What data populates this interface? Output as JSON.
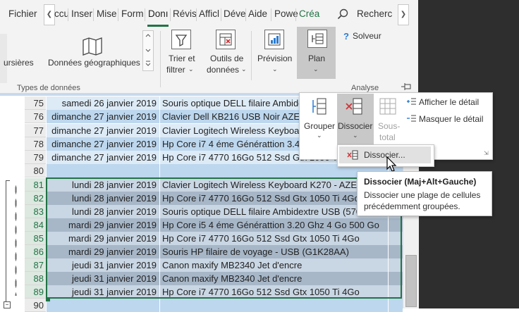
{
  "tabs": [
    {
      "label": "Fichier"
    },
    {
      "label": "ccu"
    },
    {
      "label": "Inser"
    },
    {
      "label": "Mise"
    },
    {
      "label": "Form"
    },
    {
      "label": "Donı"
    },
    {
      "label": "Révis"
    },
    {
      "label": "Afficl"
    },
    {
      "label": "Déve"
    },
    {
      "label": "Aide"
    },
    {
      "label": "Powe"
    },
    {
      "label": "Créa"
    }
  ],
  "search": {
    "label": "Recherc"
  },
  "ribbon": {
    "datatypes_partial": "ursières",
    "geo_data": "Données géographiques",
    "group_datatypes": "Types de données",
    "sort_filter_1": "Trier et",
    "sort_filter_2": "filtrer",
    "tools_1": "Outils de",
    "tools_2": "données",
    "forecast": "Prévision",
    "outline": "Plan",
    "solver": "Solveur",
    "group_analysis": "Analyse"
  },
  "dropdown": {
    "group": "Grouper",
    "ungroup": "Dissocier",
    "subtotal_1": "Sous-",
    "subtotal_2": "total",
    "show_detail": "Afficher le détail",
    "hide_detail": "Masquer le détail"
  },
  "submenu": {
    "item": "Dissocier..."
  },
  "tooltip": {
    "title": "Dissocier (Maj+Alt+Gauche)",
    "body_1": "Dissocier une plage de cellules",
    "body_2": "précédemment groupées."
  },
  "rows": [
    {
      "num": "75",
      "date": "samedi 26 janvier 2019",
      "product": "Souris optique DELL filaire Ambidextre"
    },
    {
      "num": "76",
      "date": "dimanche 27 janvier 2019",
      "product": "Clavier Dell KB216 USB Noir AZERTY"
    },
    {
      "num": "77",
      "date": "dimanche 27 janvier 2019",
      "product": "Clavier Logitech Wireless Keyboard"
    },
    {
      "num": "78",
      "date": "dimanche 27 janvier 2019",
      "product": "Hp Core i7 4 éme Générattion 3.40"
    },
    {
      "num": "79",
      "date": "dimanche 27 janvier 2019",
      "product": "Hp Core i7 4770 16Go 512 Ssd Gtx 1050 Ti"
    },
    {
      "num": "80",
      "date": "",
      "product": ""
    },
    {
      "num": "81",
      "date": "lundi 28 janvier 2019",
      "product": "Clavier Logitech Wireless Keyboard K270 - AZERTY"
    },
    {
      "num": "82",
      "date": "lundi 28 janvier 2019",
      "product": "Hp Core i7 4770 16Go 512 Ssd Gtx 1050 Ti 4Go"
    },
    {
      "num": "83",
      "date": "lundi 28 janvier 2019",
      "product": "Souris optique DELL filaire Ambidextre USB (570-AA"
    },
    {
      "num": "84",
      "date": "mardi 29 janvier 2019",
      "product": "Hp Core i5 4 éme Générattion 3.20 Ghz 4 Go 500 Go"
    },
    {
      "num": "85",
      "date": "mardi 29 janvier 2019",
      "product": "Hp Core i7 4770 16Go 512 Ssd Gtx 1050 Ti 4Go"
    },
    {
      "num": "86",
      "date": "mardi 29 janvier 2019",
      "product": "Souris HP filaire de voyage - USB (G1K28AA)"
    },
    {
      "num": "87",
      "date": "jeudi 31 janvier 2019",
      "product": "Canon maxify MB2340 Jet d'encre"
    },
    {
      "num": "88",
      "date": "jeudi 31 janvier 2019",
      "product": "Canon maxify MB2340 Jet d'encre"
    },
    {
      "num": "89",
      "date": "jeudi 31 janvier 2019",
      "product": "Hp Core i7 4770 16Go 512 Ssd Gtx 1050 Ti 4Go"
    },
    {
      "num": "90",
      "date": "",
      "product": ""
    }
  ]
}
